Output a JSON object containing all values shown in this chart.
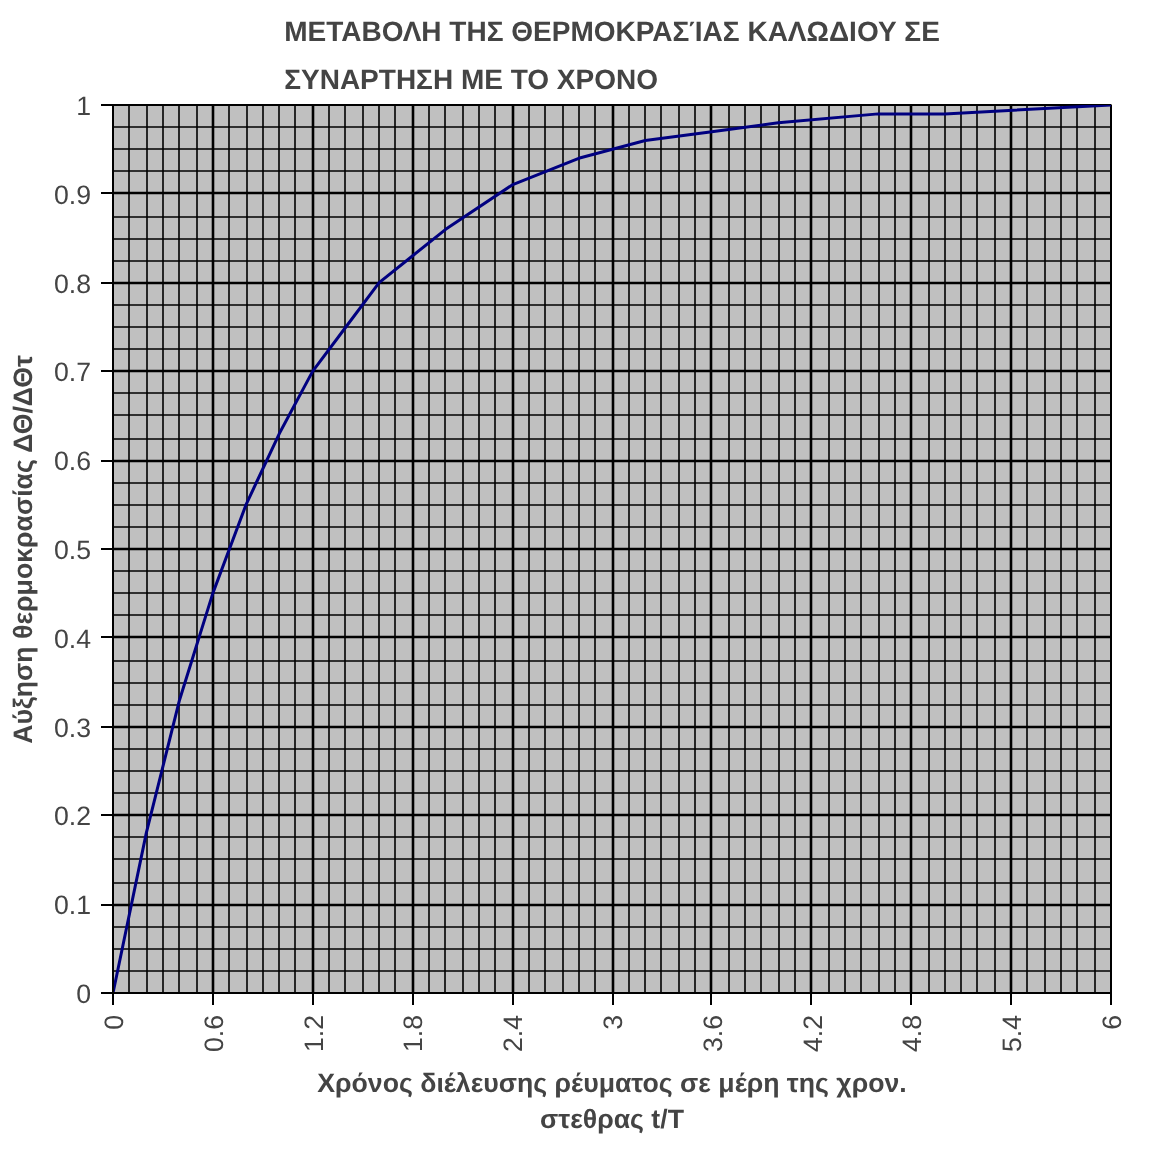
{
  "chart_data": {
    "type": "line",
    "title": "ΜΕΤΑΒΟΛΗ ΤΗΣ ΘΕΡΜΟΚΡΑΣΊΑΣ ΚΑΛΩΔΙΟΥ ΣΕ\nΣΥΝΑΡΤΗΣΗ ΜΕ ΤΟ ΧΡΟΝΟ",
    "xlabel": "Χρόνος διέλευσης ρέυματος σε μέρη της χρον.\nστεθρας t/T",
    "ylabel": "Αύξηση θερμοκρασίας ΔΘ/ΔΘτ",
    "x": [
      0,
      0.2,
      0.4,
      0.6,
      0.8,
      1.0,
      1.2,
      1.4,
      1.6,
      1.8,
      2.0,
      2.4,
      2.8,
      3.2,
      3.6,
      4.0,
      4.6,
      5.0,
      6.0
    ],
    "series": [
      {
        "color": "#000080",
        "values": [
          0,
          0.18,
          0.33,
          0.45,
          0.55,
          0.63,
          0.7,
          0.75,
          0.8,
          0.83,
          0.86,
          0.91,
          0.94,
          0.96,
          0.97,
          0.98,
          0.99,
          0.99,
          1.0
        ]
      }
    ],
    "xlim": [
      0,
      6
    ],
    "xticks": [
      0,
      0.6,
      1.2,
      1.8,
      2.4,
      3,
      3.6,
      4.2,
      4.8,
      5.4,
      6
    ],
    "ylim": [
      0,
      1
    ],
    "yticks": [
      0,
      0.1,
      0.2,
      0.3,
      0.4,
      0.5,
      0.6,
      0.7,
      0.8,
      0.9,
      1
    ],
    "grid": true,
    "marker": "none",
    "line_style": "solid"
  }
}
